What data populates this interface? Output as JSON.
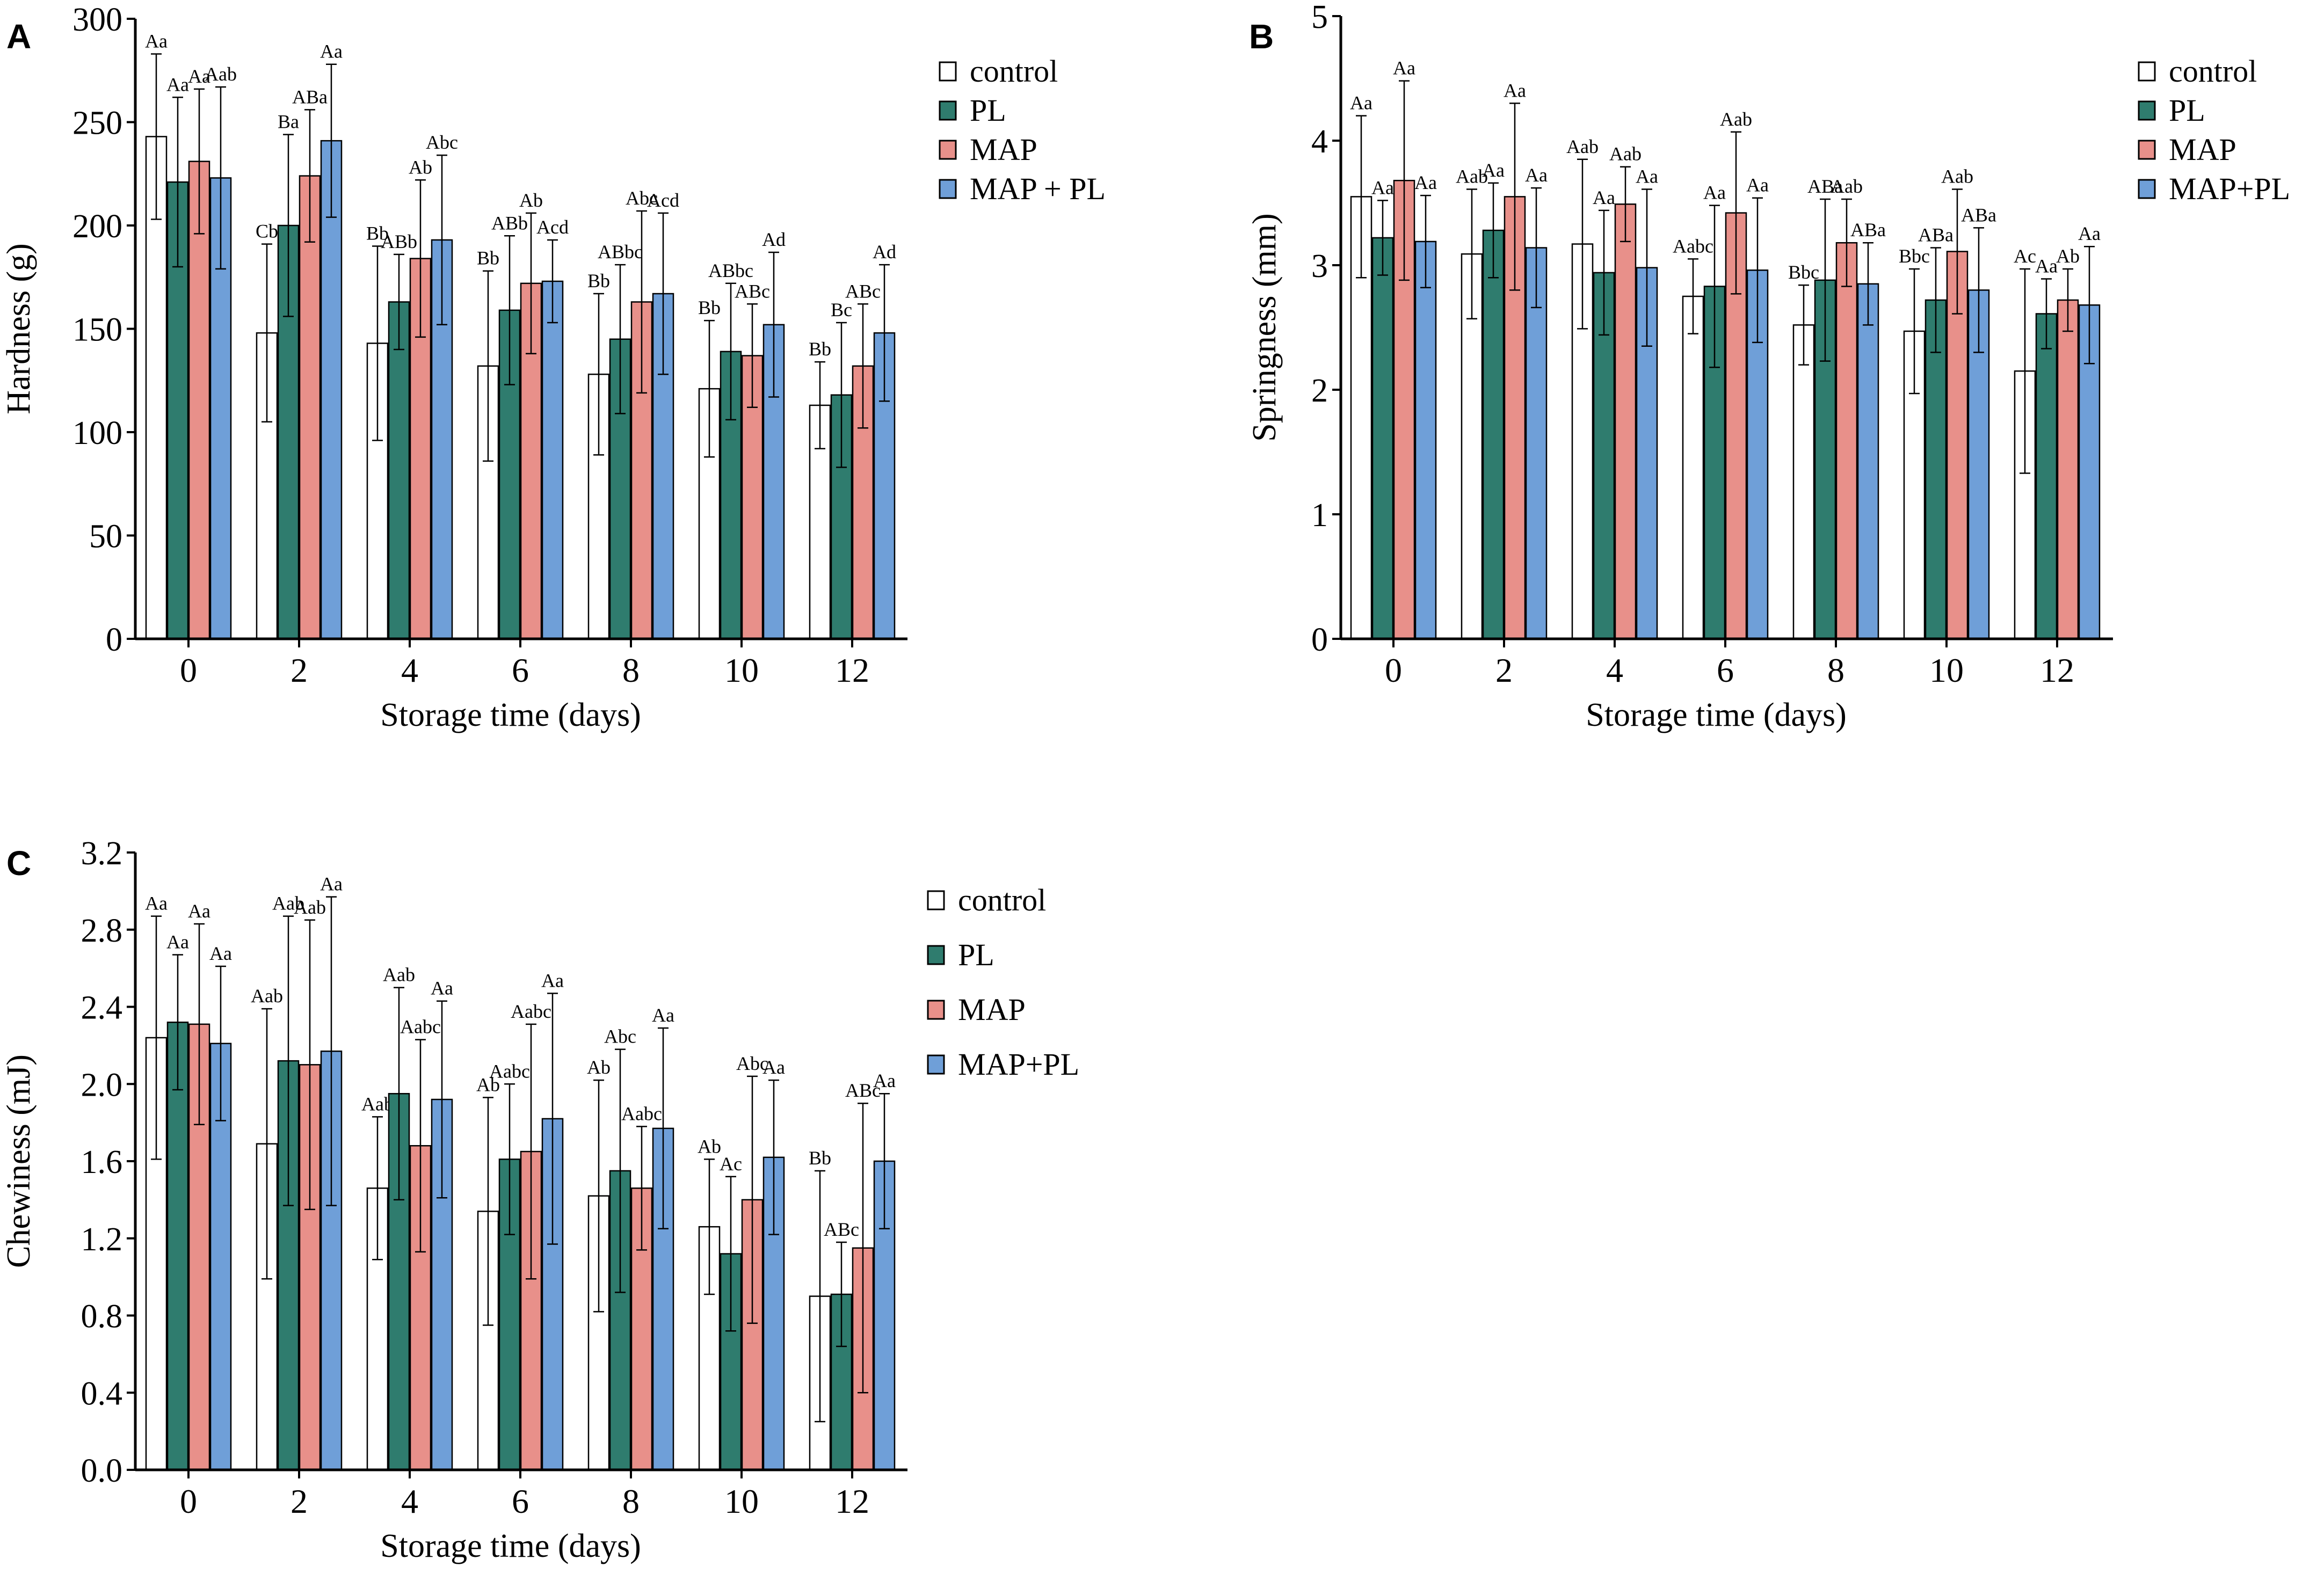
{
  "colors": {
    "control": "#ffffff",
    "PL": "#2f7c6e",
    "MAP": "#e8908a",
    "MAP+PL": "#6f9fd8",
    "axis": "#000000"
  },
  "chart_data": [
    {
      "id": "A",
      "type": "bar",
      "panel_label": "A",
      "xlabel": "Storage time (days)",
      "ylabel": "Hardness (g)",
      "categories": [
        "0",
        "2",
        "4",
        "6",
        "8",
        "10",
        "12"
      ],
      "ylim": [
        0,
        300
      ],
      "yticks": [
        0,
        50,
        100,
        150,
        200,
        250,
        300
      ],
      "ytick_labels": [
        "0",
        "50",
        "100",
        "150",
        "200",
        "250",
        "300"
      ],
      "series": [
        {
          "name": "control",
          "legend_label": "control",
          "values": [
            243,
            148,
            143,
            132,
            128,
            121,
            113
          ],
          "errors": [
            40,
            43,
            47,
            46,
            39,
            33,
            21
          ],
          "labels": [
            "Aa",
            "Cb",
            "Bb",
            "Bb",
            "Bb",
            "Bb",
            "Bb"
          ]
        },
        {
          "name": "PL",
          "legend_label": "PL",
          "values": [
            221,
            200,
            163,
            159,
            145,
            139,
            118
          ],
          "errors": [
            41,
            44,
            23,
            36,
            36,
            33,
            35
          ],
          "labels": [
            "Aa",
            "Ba",
            "ABb",
            "ABb",
            "ABbc",
            "ABbc",
            "Bc"
          ]
        },
        {
          "name": "MAP",
          "legend_label": "MAP",
          "values": [
            231,
            224,
            184,
            172,
            163,
            137,
            132
          ],
          "errors": [
            35,
            32,
            38,
            34,
            44,
            25,
            30
          ],
          "labels": [
            "Aa",
            "ABa",
            "Ab",
            "Ab",
            "Abc",
            "ABc",
            "ABc"
          ]
        },
        {
          "name": "MAP+PL",
          "legend_label": "MAP + PL",
          "values": [
            223,
            241,
            193,
            173,
            167,
            152,
            148
          ],
          "errors": [
            44,
            37,
            41,
            20,
            39,
            35,
            33
          ],
          "labels": [
            "Aab",
            "Aa",
            "Abc",
            "Acd",
            "Acd",
            "Ad",
            "Ad"
          ]
        }
      ]
    },
    {
      "id": "B",
      "type": "bar",
      "panel_label": "B",
      "xlabel": "Storage time (days)",
      "ylabel": "Springness (mm)",
      "categories": [
        "0",
        "2",
        "4",
        "6",
        "8",
        "10",
        "12"
      ],
      "ylim": [
        0,
        5
      ],
      "yticks": [
        0,
        1,
        2,
        3,
        4,
        5
      ],
      "ytick_labels": [
        "0",
        "1",
        "2",
        "3",
        "4",
        "5"
      ],
      "series": [
        {
          "name": "control",
          "legend_label": "control",
          "values": [
            3.55,
            3.09,
            3.17,
            2.75,
            2.52,
            2.47,
            2.15
          ],
          "errors": [
            0.65,
            0.52,
            0.68,
            0.3,
            0.32,
            0.5,
            0.82
          ],
          "labels": [
            "Aa",
            "Aab",
            "Aab",
            "Aabc",
            "Bbc",
            "Bbc",
            "Ac"
          ]
        },
        {
          "name": "PL",
          "legend_label": "PL",
          "values": [
            3.22,
            3.28,
            2.94,
            2.83,
            2.88,
            2.72,
            2.61
          ],
          "errors": [
            0.3,
            0.38,
            0.5,
            0.65,
            0.65,
            0.42,
            0.28
          ],
          "labels": [
            "Aa",
            "Aa",
            "Aa",
            "Aa",
            "ABa",
            "ABa",
            "Aa"
          ]
        },
        {
          "name": "MAP",
          "legend_label": "MAP",
          "values": [
            3.68,
            3.55,
            3.49,
            3.42,
            3.18,
            3.11,
            2.72
          ],
          "errors": [
            0.8,
            0.75,
            0.3,
            0.65,
            0.35,
            0.5,
            0.25
          ],
          "labels": [
            "Aa",
            "Aa",
            "Aab",
            "Aab",
            "Aab",
            "Aab",
            "Ab"
          ]
        },
        {
          "name": "MAP+PL",
          "legend_label": "MAP+PL",
          "values": [
            3.19,
            3.14,
            2.98,
            2.96,
            2.85,
            2.8,
            2.68
          ],
          "errors": [
            0.37,
            0.48,
            0.63,
            0.58,
            0.33,
            0.5,
            0.47
          ],
          "labels": [
            "Aa",
            "Aa",
            "Aa",
            "Aa",
            "ABa",
            "ABa",
            "Aa"
          ]
        }
      ]
    },
    {
      "id": "C",
      "type": "bar",
      "panel_label": "C",
      "xlabel": "Storage time (days)",
      "ylabel": "Chewiness (mJ)",
      "categories": [
        "0",
        "2",
        "4",
        "6",
        "8",
        "10",
        "12"
      ],
      "ylim": [
        0,
        3.2
      ],
      "yticks": [
        0,
        0.4,
        0.8,
        1.2,
        1.6,
        2.0,
        2.4,
        2.8,
        3.2
      ],
      "ytick_labels": [
        "0.0",
        "0.4",
        "0.8",
        "1.2",
        "1.6",
        "2.0",
        "2.4",
        "2.8",
        "3.2"
      ],
      "series": [
        {
          "name": "control",
          "legend_label": "control",
          "values": [
            2.24,
            1.69,
            1.46,
            1.34,
            1.42,
            1.26,
            0.9
          ],
          "errors": [
            0.63,
            0.7,
            0.37,
            0.59,
            0.6,
            0.35,
            0.65
          ],
          "labels": [
            "Aa",
            "Aab",
            "Aab",
            "Ab",
            "Ab",
            "Ab",
            "Bb"
          ]
        },
        {
          "name": "PL",
          "legend_label": "PL",
          "values": [
            2.32,
            2.12,
            1.95,
            1.61,
            1.55,
            1.12,
            0.91
          ],
          "errors": [
            0.35,
            0.75,
            0.55,
            0.39,
            0.63,
            0.4,
            0.27
          ],
          "labels": [
            "Aa",
            "Aab",
            "Aab",
            "Aabc",
            "Abc",
            "Ac",
            "ABc"
          ]
        },
        {
          "name": "MAP",
          "legend_label": "MAP",
          "values": [
            2.31,
            2.1,
            1.68,
            1.65,
            1.46,
            1.4,
            1.15
          ],
          "errors": [
            0.52,
            0.75,
            0.55,
            0.66,
            0.32,
            0.64,
            0.75
          ],
          "labels": [
            "Aa",
            "Aab",
            "Aabc",
            "Aabc",
            "Aabc",
            "Abc",
            "ABc"
          ]
        },
        {
          "name": "MAP+PL",
          "legend_label": "MAP+PL",
          "values": [
            2.21,
            2.17,
            1.92,
            1.82,
            1.77,
            1.62,
            1.6
          ],
          "errors": [
            0.4,
            0.8,
            0.51,
            0.65,
            0.52,
            0.4,
            0.35
          ],
          "labels": [
            "Aa",
            "Aa",
            "Aa",
            "Aa",
            "Aa",
            "Aa",
            "Aa"
          ]
        }
      ]
    }
  ]
}
